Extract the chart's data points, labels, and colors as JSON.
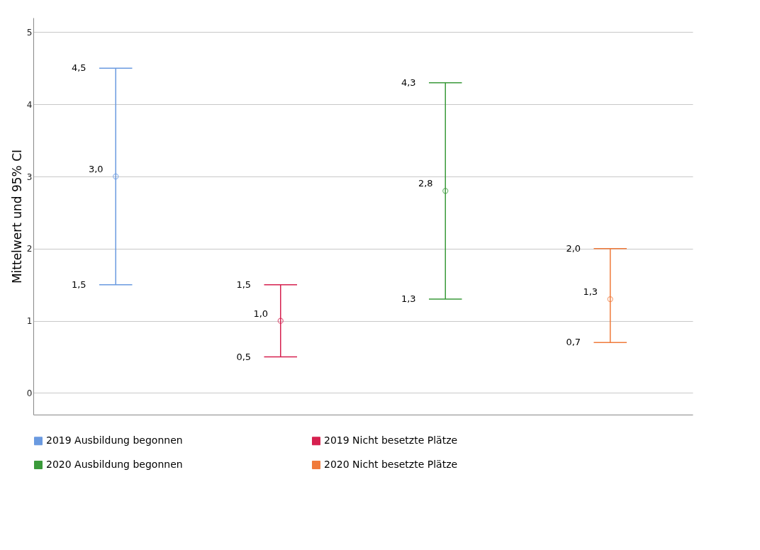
{
  "chart_data": {
    "type": "scatter",
    "ylabel": "Mittelwert und 95% CI",
    "categories": [
      null,
      null,
      null,
      null
    ],
    "ylim": [
      -0.3,
      5.2
    ],
    "yticks": [
      0,
      1,
      2,
      3,
      4,
      5
    ],
    "grid": "y",
    "tick_labels": "y",
    "marker": "circle",
    "legend": "bottom",
    "series": [
      {
        "name": "2019 Ausbildung begonnen",
        "color": "#6a9ae0",
        "values": [
          3.0,
          null,
          null,
          null
        ],
        "errors": [
          [
            1.5,
            4.5
          ],
          null,
          null,
          null
        ],
        "value_labels": [
          "3,0",
          null,
          null,
          null
        ]
      },
      {
        "name": "2019 Nicht besetzte Plätze",
        "color": "#d6204f",
        "values": [
          null,
          1.0,
          null,
          null
        ],
        "errors": [
          null,
          [
            0.5,
            1.5
          ],
          null,
          null
        ],
        "value_labels": [
          null,
          "1,0",
          null,
          null
        ]
      },
      {
        "name": "2020 Ausbildung begonnen",
        "color": "#3a9a3a",
        "values": [
          null,
          null,
          2.8,
          null
        ],
        "errors": [
          null,
          null,
          [
            1.3,
            4.3
          ],
          null
        ],
        "value_labels": [
          null,
          null,
          "2,8",
          null
        ]
      },
      {
        "name": "2020 Nicht besetzte Plätze",
        "color": "#f07a3a",
        "values": [
          null,
          null,
          null,
          1.3
        ],
        "errors": [
          null,
          null,
          null,
          [
            0.7,
            2.0
          ]
        ],
        "value_labels": [
          null,
          null,
          null,
          "1,3"
        ]
      }
    ],
    "annotations": [
      "1,5",
      "4,5",
      "0,5",
      "1,5",
      "1,3",
      "4,3",
      "0,7",
      "2,0"
    ]
  }
}
